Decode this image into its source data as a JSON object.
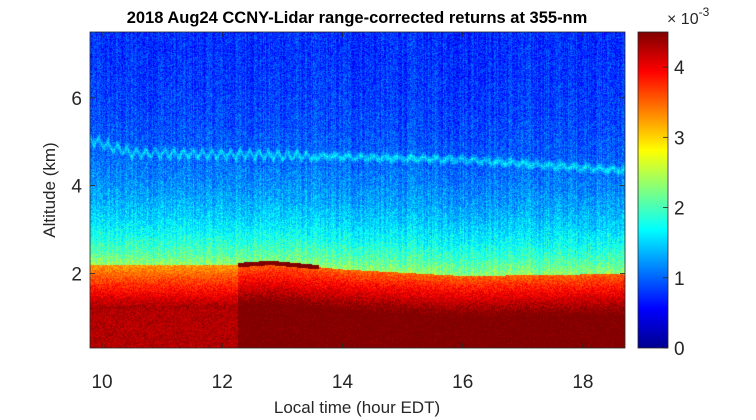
{
  "chart_data": {
    "type": "heatmap",
    "title": "2018 Aug24 CCNY-Lidar range-corrected returns at 355-nm",
    "xlabel": "Local time (hour EDT)",
    "ylabel": "Altitude (km)",
    "xlim": [
      9.8,
      18.7
    ],
    "ylim": [
      0.3,
      7.5
    ],
    "x_ticks": [
      10,
      12,
      14,
      16,
      18
    ],
    "y_ticks": [
      2,
      4,
      6
    ],
    "colorbar": {
      "min": 0,
      "max": 4.5,
      "ticks": [
        0,
        1,
        2,
        3,
        4
      ],
      "exponent_base": "× 10",
      "exponent_power": "-3",
      "colormap": "jet"
    },
    "features": {
      "boundary_layer_top_km": [
        {
          "time": 9.8,
          "altitude": 2.2
        },
        {
          "time": 12.25,
          "altitude": 2.2
        },
        {
          "time": 12.8,
          "altitude": 2.25
        },
        {
          "time": 14.0,
          "altitude": 2.1
        },
        {
          "time": 16.0,
          "altitude": 1.95
        },
        {
          "time": 18.7,
          "altitude": 2.0
        }
      ],
      "elevated_layer_km": [
        {
          "time": 9.8,
          "altitude": 5.05
        },
        {
          "time": 10.5,
          "altitude": 4.75
        },
        {
          "time": 13.0,
          "altitude": 4.7
        },
        {
          "time": 16.0,
          "altitude": 4.6
        },
        {
          "time": 18.7,
          "altitude": 4.35
        }
      ],
      "signal_jump_time": 12.25
    }
  }
}
